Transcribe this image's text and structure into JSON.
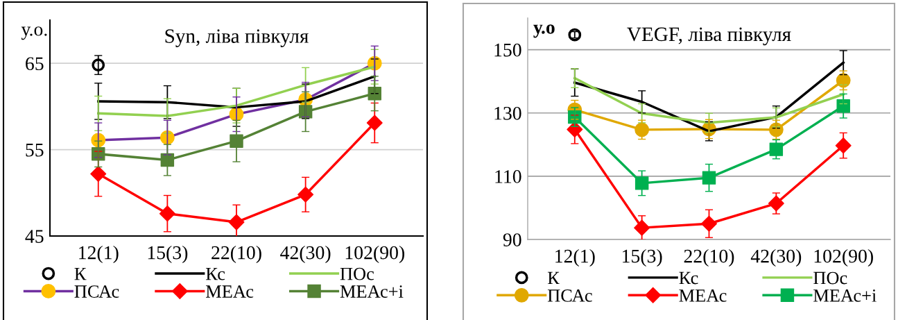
{
  "chart_data": [
    {
      "type": "line",
      "title": "Syn, ліва півкуля",
      "ylabel": "у.о.",
      "categories": [
        "12(1)",
        "15(3)",
        "22(10)",
        "42(30)",
        "102(90)"
      ],
      "ylim": [
        45,
        70
      ],
      "yticks": [
        45,
        55,
        65
      ],
      "grid": "y",
      "legend": "bottom",
      "series": [
        {
          "name": "К",
          "type": "scatter",
          "marker": "circle",
          "color": "#000000",
          "values": [
            64.8,
            null,
            null,
            null,
            null
          ],
          "errors": [
            1.1,
            null,
            null,
            null,
            null
          ]
        },
        {
          "name": "Кс",
          "marker": "none",
          "color": "#000000",
          "values": [
            60.6,
            60.5,
            59.9,
            60.6,
            63.5
          ],
          "errors": [
            2.1,
            1.9,
            2.2,
            2.0,
            2.0
          ]
        },
        {
          "name": "ПОс",
          "marker": "none",
          "color": "#92d050",
          "values": [
            59.2,
            58.9,
            60.1,
            62.5,
            64.6
          ],
          "errors": [
            2.0,
            2.0,
            2.0,
            2.0,
            2.0
          ]
        },
        {
          "name": "ПСАс",
          "marker": "circle",
          "color": "#7030a0",
          "colors": [
            "#ffc000",
            "#ffc000",
            "#ffc000",
            "#ffc000",
            "#ffc000"
          ],
          "values": [
            56.1,
            56.4,
            59.1,
            60.8,
            65.0
          ],
          "errors": [
            2.0,
            2.0,
            2.0,
            2.0,
            2.0
          ]
        },
        {
          "name": "МЕАс",
          "marker": "diamond",
          "color": "#ff0000",
          "values": [
            52.2,
            47.6,
            46.6,
            49.8,
            58.1
          ],
          "errors": [
            2.6,
            2.1,
            2.0,
            2.0,
            2.3
          ]
        },
        {
          "name": "МЕАс+і",
          "marker": "square",
          "color": "#548235",
          "values": [
            54.5,
            53.8,
            56.0,
            59.4,
            61.5
          ],
          "errors": [
            1.5,
            1.8,
            2.4,
            2.3,
            2.0
          ]
        }
      ]
    },
    {
      "type": "line",
      "title": "VEGF, ліва півкуля",
      "ylabel": "у.о",
      "categories": [
        "12(1)",
        "15(3)",
        "22(10)",
        "42(30)",
        "102(90)"
      ],
      "ylim": [
        90,
        160
      ],
      "yticks": [
        90,
        110,
        130,
        150
      ],
      "grid": "y",
      "legend": "bottom",
      "series": [
        {
          "name": "К",
          "type": "scatter",
          "marker": "circle",
          "color": "#000000",
          "values": [
            154.7,
            null,
            null,
            null,
            null
          ],
          "errors": [
            1.0,
            null,
            null,
            null,
            null
          ]
        },
        {
          "name": "Кс",
          "marker": "none",
          "color": "#000000",
          "values": [
            139.6,
            133.5,
            124.2,
            128.7,
            145.9
          ],
          "errors": [
            4.3,
            3.5,
            3.0,
            3.5,
            3.8
          ]
        },
        {
          "name": "ПОс",
          "marker": "none",
          "color": "#92d050",
          "values": [
            141.0,
            129.9,
            126.9,
            128.6,
            135.9
          ],
          "errors": [
            3.0,
            3.0,
            3.0,
            3.0,
            3.0
          ]
        },
        {
          "name": "ПСАс",
          "marker": "circle",
          "color": "#e0a800",
          "values": [
            131.0,
            124.7,
            124.9,
            124.7,
            140.3
          ],
          "errors": [
            3.0,
            3.0,
            3.0,
            3.0,
            3.0
          ]
        },
        {
          "name": "МЕАс",
          "marker": "diamond",
          "color": "#ff0000",
          "values": [
            124.8,
            93.7,
            95.0,
            101.4,
            119.7
          ],
          "errors": [
            4.5,
            3.8,
            4.4,
            3.3,
            4.0
          ]
        },
        {
          "name": "МЕАс+і",
          "marker": "square",
          "color": "#00b050",
          "values": [
            128.7,
            107.8,
            109.5,
            118.5,
            132.2
          ],
          "errors": [
            3.0,
            3.9,
            4.3,
            3.0,
            3.8
          ]
        }
      ]
    }
  ]
}
